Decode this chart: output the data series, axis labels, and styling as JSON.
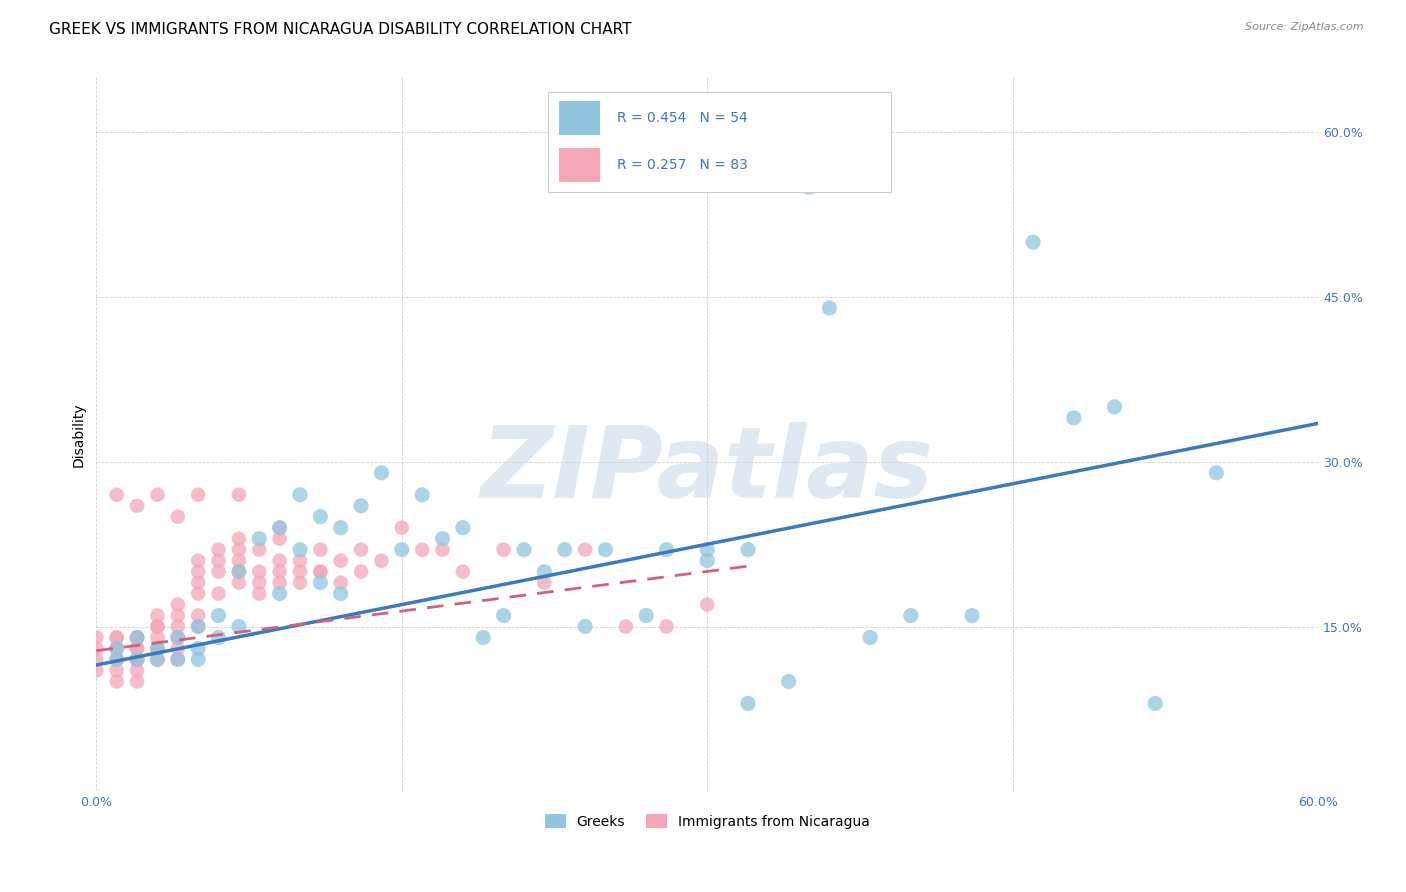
{
  "title": "GREEK VS IMMIGRANTS FROM NICARAGUA DISABILITY CORRELATION CHART",
  "source": "Source: ZipAtlas.com",
  "ylabel": "Disability",
  "xlim": [
    0.0,
    0.6
  ],
  "ylim": [
    0.0,
    0.65
  ],
  "x_tick_positions": [
    0.0,
    0.15,
    0.3,
    0.45,
    0.6
  ],
  "x_tick_labels": [
    "0.0%",
    "",
    "",
    "",
    "60.0%"
  ],
  "y_tick_positions": [
    0.0,
    0.15,
    0.3,
    0.45,
    0.6
  ],
  "y_tick_labels": [
    "",
    "15.0%",
    "30.0%",
    "45.0%",
    "60.0%"
  ],
  "legend_label_blue": "Greeks",
  "legend_label_pink": "Immigrants from Nicaragua",
  "R_blue": 0.454,
  "N_blue": 54,
  "R_pink": 0.257,
  "N_pink": 83,
  "blue_color": "#92c5de",
  "pink_color": "#f4a6b8",
  "blue_line_color": "#3a7abf",
  "pink_line_color": "#d46080",
  "tick_color": "#4472c4",
  "watermark": "ZIPatlas",
  "title_fontsize": 11,
  "tick_fontsize": 9,
  "blue_line_x": [
    0.0,
    0.6
  ],
  "blue_line_y": [
    0.115,
    0.335
  ],
  "pink_line_x": [
    0.0,
    0.32
  ],
  "pink_line_y": [
    0.128,
    0.205
  ],
  "blue_points_x": [
    0.01,
    0.01,
    0.02,
    0.02,
    0.03,
    0.03,
    0.04,
    0.04,
    0.05,
    0.05,
    0.05,
    0.06,
    0.06,
    0.07,
    0.07,
    0.08,
    0.09,
    0.09,
    0.1,
    0.1,
    0.11,
    0.11,
    0.12,
    0.12,
    0.13,
    0.14,
    0.15,
    0.16,
    0.17,
    0.18,
    0.19,
    0.2,
    0.21,
    0.22,
    0.23,
    0.24,
    0.25,
    0.27,
    0.28,
    0.3,
    0.32,
    0.34,
    0.36,
    0.38,
    0.4,
    0.43,
    0.46,
    0.48,
    0.5,
    0.52,
    0.3,
    0.32,
    0.35,
    0.55
  ],
  "blue_points_y": [
    0.13,
    0.12,
    0.14,
    0.12,
    0.13,
    0.12,
    0.14,
    0.12,
    0.15,
    0.13,
    0.12,
    0.16,
    0.14,
    0.2,
    0.15,
    0.23,
    0.24,
    0.18,
    0.27,
    0.22,
    0.25,
    0.19,
    0.24,
    0.18,
    0.26,
    0.29,
    0.22,
    0.27,
    0.23,
    0.24,
    0.14,
    0.16,
    0.22,
    0.2,
    0.22,
    0.15,
    0.22,
    0.16,
    0.22,
    0.22,
    0.08,
    0.1,
    0.44,
    0.14,
    0.16,
    0.16,
    0.5,
    0.34,
    0.35,
    0.08,
    0.21,
    0.22,
    0.55,
    0.29
  ],
  "pink_points_x": [
    0.0,
    0.0,
    0.0,
    0.0,
    0.01,
    0.01,
    0.01,
    0.01,
    0.01,
    0.01,
    0.01,
    0.02,
    0.02,
    0.02,
    0.02,
    0.02,
    0.02,
    0.02,
    0.02,
    0.03,
    0.03,
    0.03,
    0.03,
    0.03,
    0.03,
    0.03,
    0.04,
    0.04,
    0.04,
    0.04,
    0.04,
    0.04,
    0.05,
    0.05,
    0.05,
    0.05,
    0.05,
    0.05,
    0.06,
    0.06,
    0.06,
    0.06,
    0.07,
    0.07,
    0.07,
    0.07,
    0.07,
    0.08,
    0.08,
    0.08,
    0.08,
    0.09,
    0.09,
    0.09,
    0.09,
    0.1,
    0.1,
    0.1,
    0.11,
    0.11,
    0.12,
    0.12,
    0.13,
    0.13,
    0.14,
    0.15,
    0.16,
    0.17,
    0.18,
    0.2,
    0.22,
    0.24,
    0.26,
    0.28,
    0.3,
    0.01,
    0.02,
    0.03,
    0.04,
    0.05,
    0.07,
    0.09,
    0.11
  ],
  "pink_points_y": [
    0.13,
    0.12,
    0.14,
    0.11,
    0.14,
    0.13,
    0.12,
    0.11,
    0.13,
    0.14,
    0.1,
    0.13,
    0.14,
    0.12,
    0.13,
    0.11,
    0.14,
    0.12,
    0.1,
    0.16,
    0.15,
    0.13,
    0.14,
    0.12,
    0.15,
    0.13,
    0.17,
    0.16,
    0.14,
    0.15,
    0.13,
    0.12,
    0.2,
    0.21,
    0.18,
    0.19,
    0.15,
    0.16,
    0.21,
    0.22,
    0.2,
    0.18,
    0.22,
    0.2,
    0.23,
    0.19,
    0.21,
    0.22,
    0.2,
    0.18,
    0.19,
    0.23,
    0.21,
    0.19,
    0.2,
    0.21,
    0.2,
    0.19,
    0.22,
    0.2,
    0.21,
    0.19,
    0.22,
    0.2,
    0.21,
    0.24,
    0.22,
    0.22,
    0.2,
    0.22,
    0.19,
    0.22,
    0.15,
    0.15,
    0.17,
    0.27,
    0.26,
    0.27,
    0.25,
    0.27,
    0.27,
    0.24,
    0.2
  ]
}
